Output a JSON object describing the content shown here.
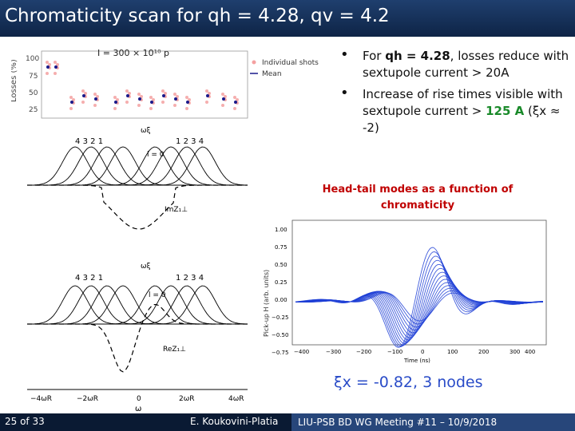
{
  "header": {
    "title": "Chromaticity scan for qh = 4.28, qv = 4.2"
  },
  "losses_plot": {
    "title": "I = 300 × 10¹⁰ p",
    "ylabel": "Losses (%)",
    "yticks": [
      "100",
      "75",
      "50",
      "25"
    ],
    "legend": [
      "Individual shots",
      "Mean"
    ]
  },
  "headtail_figure": {
    "top_mode_numbers_left": [
      "4",
      "3",
      "2",
      "1"
    ],
    "top_mode_numbers_right": [
      "1",
      "2",
      "3",
      "4"
    ],
    "top_label": "ImZ₁⊥",
    "bottom_label": "ReZ₁⊥",
    "omega_xi": "ωξ",
    "l_zero": "l = 0",
    "xticks": [
      "−4ωR",
      "−2ωR",
      "0",
      "2ωR",
      "4ωR"
    ],
    "xlabel": "ω"
  },
  "bullets": {
    "b1_pre": "For ",
    "b1_bold": "qh = 4.28",
    "b1_post": ", losses reduce with sextupole current > 20A",
    "b2_pre": "Increase of rise times visible with sextupole current > ",
    "b2_green": "125 A",
    "b2_post": " (ξx ≈ -2)"
  },
  "headtail_caption": "Head-tail modes as a function of chromaticity",
  "pickup_plot": {
    "ylabel": "Pick-up H (arb. units)",
    "xlabel": "Time (ns)",
    "yticks": [
      "1.00",
      "0.75",
      "0.50",
      "0.25",
      "0.00",
      "−0.25",
      "−0.50",
      "−0.75"
    ],
    "xticks": [
      "−400",
      "−300",
      "−200",
      "−100",
      "0",
      "100",
      "200",
      "300",
      "400"
    ]
  },
  "xi_label": "ξx = -0.82, 3 nodes",
  "footer": {
    "page": "25 of 33",
    "author": "E. Koukovini-Platia",
    "meeting": "LIU-PSB BD WG Meeting #11 – 10/9/2018"
  },
  "colors": {
    "title_bg": "#1a3661",
    "accent_green": "#1a8a2a",
    "caption_red": "#c00000",
    "trace_blue": "#1f3fd6"
  }
}
